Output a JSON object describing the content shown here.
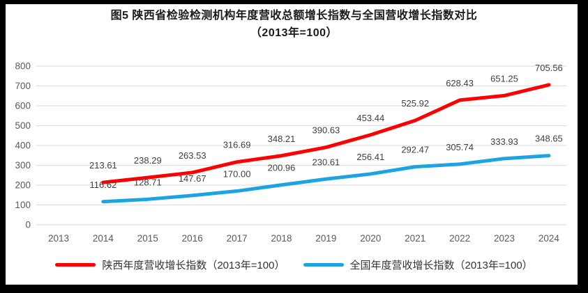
{
  "title": {
    "line1": "图5  陕西省检验检测机构年度营收总额增长指数与全国营收增长指数对比",
    "line2": "（2013年=100）"
  },
  "chart_data": {
    "type": "line",
    "categories": [
      "2013",
      "2014",
      "2015",
      "2016",
      "2017",
      "2018",
      "2019",
      "2020",
      "2021",
      "2022",
      "2023",
      "2024"
    ],
    "series": [
      {
        "name": "陕西年度营收增长指数（2013年=100）",
        "color": "#fe0000",
        "values": [
          null,
          213.61,
          238.29,
          263.53,
          316.69,
          348.21,
          390.63,
          453.44,
          525.92,
          628.43,
          651.25,
          705.56
        ]
      },
      {
        "name": "全国年度营收增长指数（2013年=100）",
        "color": "#1ba3e2",
        "values": [
          null,
          116.62,
          128.71,
          147.67,
          170.0,
          200.96,
          230.61,
          256.41,
          292.47,
          305.74,
          333.93,
          348.65
        ]
      }
    ],
    "ylim": [
      0,
      800
    ],
    "yticks": [
      0,
      100,
      200,
      300,
      400,
      500,
      600,
      700,
      800
    ],
    "grid": true,
    "data_labels": true,
    "label_decimals": 2,
    "legend_position": "bottom"
  },
  "style": {
    "frame_color": "#000000",
    "panel_color": "#ffffff",
    "gridline_color": "#e0e0e0",
    "axis_label_color": "#595959",
    "data_label_color": "#3f3f3f",
    "title_color": "#1a1a1a",
    "legend_text_color": "#333333"
  }
}
